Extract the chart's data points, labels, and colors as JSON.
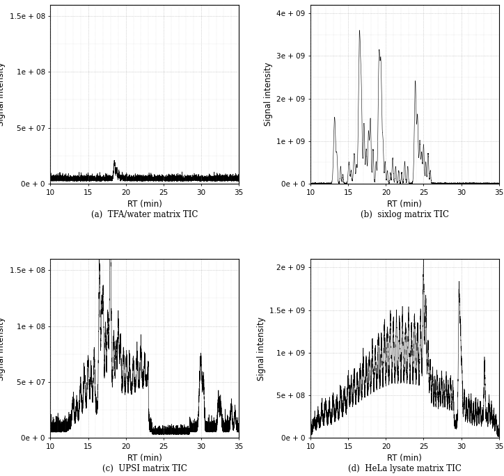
{
  "panels": [
    {
      "label": "(a)  TFA/water matrix TIC",
      "ylim": [
        0,
        160000000.0
      ],
      "yticks": [
        0,
        50000000.0,
        100000000.0,
        150000000.0
      ],
      "ytick_labels": [
        "0e + 0",
        "5e + 07",
        "1e + 08",
        "1.5e + 08"
      ],
      "xlim": [
        10,
        35
      ],
      "xticks": [
        10,
        15,
        20,
        25,
        30,
        35
      ]
    },
    {
      "label": "(b)  sixlog matrix TIC",
      "ylim": [
        0,
        4200000000.0
      ],
      "yticks": [
        0,
        1000000000.0,
        2000000000.0,
        3000000000.0,
        4000000000.0
      ],
      "ytick_labels": [
        "0e + 0",
        "1e + 09",
        "2e + 09",
        "3e + 09",
        "4e + 09"
      ],
      "xlim": [
        10,
        35
      ],
      "xticks": [
        10,
        15,
        20,
        25,
        30,
        35
      ]
    },
    {
      "label": "(c)  UPSI matrix TIC",
      "ylim": [
        0,
        160000000.0
      ],
      "yticks": [
        0,
        50000000.0,
        100000000.0,
        150000000.0
      ],
      "ytick_labels": [
        "0e + 0",
        "5e + 07",
        "1e + 08",
        "1.5e + 08"
      ],
      "xlim": [
        10,
        35
      ],
      "xticks": [
        10,
        15,
        20,
        25,
        30,
        35
      ]
    },
    {
      "label": "(d)  HeLa lysate matrix TIC",
      "ylim": [
        0,
        2100000000.0
      ],
      "yticks": [
        0,
        500000000.0,
        1000000000.0,
        1500000000.0,
        2000000000.0
      ],
      "ytick_labels": [
        "0e + 0",
        "5e + 08",
        "1e + 09",
        "1.5e + 09",
        "2e + 09"
      ],
      "xlim": [
        10,
        35
      ],
      "xticks": [
        10,
        15,
        20,
        25,
        30,
        35
      ]
    }
  ],
  "xlabel": "RT (min)",
  "ylabel": "Signal intensity",
  "line_color": "#000000",
  "background_color": "#ffffff",
  "grid_color": "#999999",
  "fig_width": 7.24,
  "fig_height": 6.84,
  "dpi": 100
}
